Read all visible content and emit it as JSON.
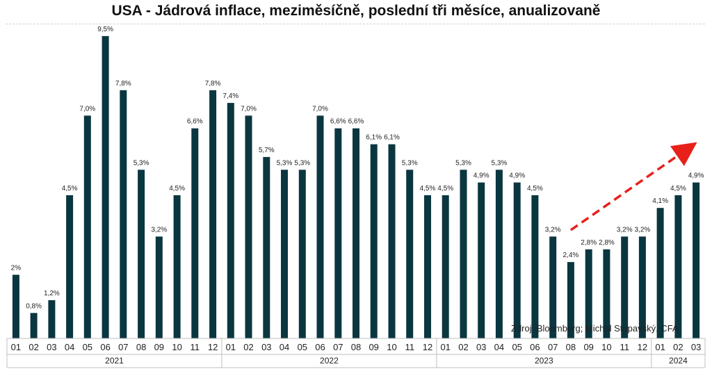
{
  "chart_data": {
    "type": "bar",
    "title": "USA - Jádrová inflace, meziměsíčně, poslední tři měsíce, anualizovaně",
    "categories": [
      "01",
      "02",
      "03",
      "04",
      "05",
      "06",
      "07",
      "08",
      "09",
      "10",
      "11",
      "12",
      "01",
      "02",
      "03",
      "04",
      "05",
      "06",
      "07",
      "08",
      "09",
      "10",
      "11",
      "12",
      "01",
      "02",
      "03",
      "04",
      "05",
      "06",
      "07",
      "08",
      "09",
      "10",
      "11",
      "12",
      "01",
      "02",
      "03"
    ],
    "years": [
      {
        "label": "2021",
        "count": 12
      },
      {
        "label": "2022",
        "count": 12
      },
      {
        "label": "2023",
        "count": 12
      },
      {
        "label": "2024",
        "count": 3
      }
    ],
    "values": [
      2.0,
      0.8,
      1.2,
      4.5,
      7.0,
      9.5,
      7.8,
      5.3,
      3.2,
      4.5,
      6.6,
      7.8,
      7.4,
      7.0,
      5.7,
      5.3,
      5.3,
      7.0,
      6.6,
      6.6,
      6.1,
      6.1,
      5.3,
      4.5,
      4.5,
      5.3,
      4.9,
      5.3,
      4.9,
      4.5,
      3.2,
      2.4,
      2.8,
      2.8,
      3.2,
      3.2,
      4.1,
      4.5,
      4.9
    ],
    "value_labels": [
      "2%",
      "0,8%",
      "1,2%",
      "4,5%",
      "7,0%",
      "9,5%",
      "7,8%",
      "5,3%",
      "3,2%",
      "4,5%",
      "6,6%",
      "7,8%",
      "7,4%",
      "7,0%",
      "5,7%",
      "5,3%",
      "5,3%",
      "7,0%",
      "6,6%",
      "6,6%",
      "6,1%",
      "6,1%",
      "5,3%",
      "4,5%",
      "4,5%",
      "5,3%",
      "4,9%",
      "5,3%",
      "4,9%",
      "4,5%",
      "3,2%",
      "2,4%",
      "2,8%",
      "2,8%",
      "3,2%",
      "3,2%",
      "4,1%",
      "4,5%",
      "4,9%"
    ],
    "ylim": [
      0,
      10
    ],
    "bar_color": "#0a3640",
    "trend_arrow": {
      "from_index": 31,
      "to_index": 38,
      "color": "#e8201a"
    },
    "source": "Zdroj: Bloomberg; Michal Stupavský, CFA",
    "grid": false,
    "legend": "none"
  }
}
